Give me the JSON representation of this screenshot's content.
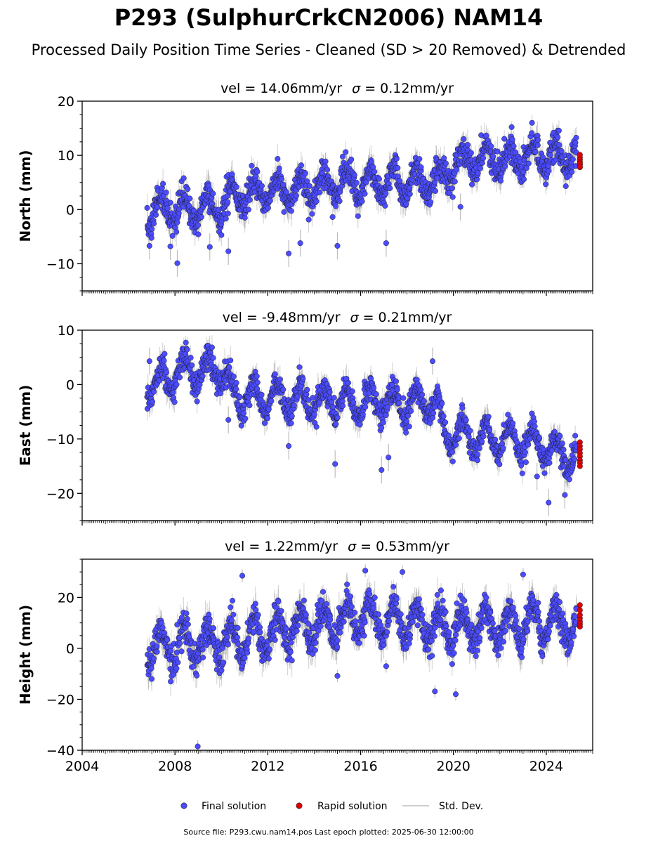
{
  "title": "P293 (SulphurCrkCN2006) NAM14",
  "subtitle": "Processed Daily Position Time Series - Cleaned (SD > 20 Removed) & Detrended",
  "footer": "Source file: P293.cwu.nam14.pos  Last epoch plotted: 2025-06-30 12:00:00",
  "colors": {
    "final": "#4b4bff",
    "rapid": "#e00000",
    "stddev": "#bdbdbd",
    "edge": "#1a1a1a"
  },
  "chart_data": {
    "type": "scatter",
    "x_range": [
      2004,
      2026
    ],
    "x_ticks": [
      "2004",
      "2008",
      "2012",
      "2016",
      "2020",
      "2024"
    ],
    "legend": {
      "placement": "bottom-center",
      "entries": [
        "Final solution",
        "Rapid solution",
        "Std. Dev."
      ]
    },
    "panels": [
      {
        "id": "north",
        "title_vel": "vel = 14.06mm/yr",
        "title_sigma": "= 0.12mm/yr",
        "ylabel": "North (mm)",
        "ylim": [
          -15,
          20
        ],
        "y_ticks": [
          "20",
          "10",
          "0",
          "−10"
        ],
        "y_tick_values": [
          20,
          10,
          0,
          -10
        ],
        "trend": [
          [
            2006.8,
            0
          ],
          [
            2010.0,
            0.5
          ],
          [
            2010.7,
            2.5
          ],
          [
            2014.5,
            4.5
          ],
          [
            2019.5,
            5.5
          ],
          [
            2020.0,
            9
          ],
          [
            2025.3,
            10
          ]
        ],
        "season_amp": 2.5,
        "scatter_sd": 1.3,
        "outliers": [
          [
            2006.9,
            -6.7
          ],
          [
            2007.8,
            -6.8
          ],
          [
            2008.1,
            -9.9
          ],
          [
            2009.5,
            -6.9
          ],
          [
            2010.3,
            -7.7
          ],
          [
            2012.9,
            -8.1
          ],
          [
            2013.4,
            -6.2
          ],
          [
            2015.0,
            -6.7
          ],
          [
            2017.1,
            -6.2
          ],
          [
            2020.3,
            0.5
          ]
        ],
        "rapid_x": 2025.45,
        "rapid_values": [
          7.8,
          8.3,
          8.8,
          9.2,
          9.6,
          10.1,
          8.5,
          7.9
        ]
      },
      {
        "id": "east",
        "title_vel": "vel = -9.48mm/yr",
        "title_sigma": "= 0.21mm/yr",
        "ylabel": "East (mm)",
        "ylim": [
          -25,
          10
        ],
        "y_ticks": [
          "10",
          "0",
          "−10",
          "−20"
        ],
        "y_tick_values": [
          10,
          0,
          -10,
          -20
        ],
        "trend": [
          [
            2006.8,
            0
          ],
          [
            2008.5,
            2.5
          ],
          [
            2010.0,
            3
          ],
          [
            2010.5,
            -2
          ],
          [
            2014.0,
            -3
          ],
          [
            2019.3,
            -3.5
          ],
          [
            2019.6,
            -9
          ],
          [
            2023.5,
            -10.5
          ],
          [
            2025.3,
            -14
          ]
        ],
        "season_amp": 2.6,
        "scatter_sd": 1.2,
        "outliers": [
          [
            2006.9,
            4.3
          ],
          [
            2010.3,
            -6.5
          ],
          [
            2012.9,
            -11.3
          ],
          [
            2014.9,
            -14.6
          ],
          [
            2016.9,
            -15.7
          ],
          [
            2017.2,
            -13.4
          ],
          [
            2019.1,
            4.3
          ],
          [
            2023.6,
            -16.9
          ],
          [
            2024.8,
            -20.3
          ],
          [
            2024.1,
            -21.7
          ]
        ],
        "rapid_x": 2025.45,
        "rapid_values": [
          -10.6,
          -11.3,
          -11.9,
          -12.6,
          -13.2,
          -13.9,
          -14.4,
          -15.0
        ]
      },
      {
        "id": "height",
        "title_vel": "vel = 1.22mm/yr",
        "title_sigma": "= 0.53mm/yr",
        "ylabel": "Height (mm)",
        "ylim": [
          -40,
          35
        ],
        "y_ticks": [
          "20",
          "0",
          "−20",
          "−40"
        ],
        "y_tick_values": [
          20,
          0,
          -20,
          -40
        ],
        "trend": [
          [
            2006.8,
            0
          ],
          [
            2010.0,
            3
          ],
          [
            2016.0,
            12
          ],
          [
            2020.0,
            8
          ],
          [
            2025.3,
            10
          ]
        ],
        "season_amp": 7,
        "scatter_sd": 3.2,
        "outliers": [
          [
            2008.98,
            -38.5
          ],
          [
            2015.0,
            -10.8
          ],
          [
            2017.1,
            -7.0
          ],
          [
            2019.2,
            -16.9
          ],
          [
            2020.1,
            -18.0
          ],
          [
            2016.2,
            30.5
          ],
          [
            2017.8,
            30.0
          ],
          [
            2010.9,
            28.5
          ],
          [
            2023.0,
            29.0
          ]
        ],
        "rapid_x": 2025.45,
        "rapid_values": [
          8.5,
          9.5,
          10.5,
          11.8,
          13.1,
          15.0,
          17.0
        ]
      }
    ]
  }
}
